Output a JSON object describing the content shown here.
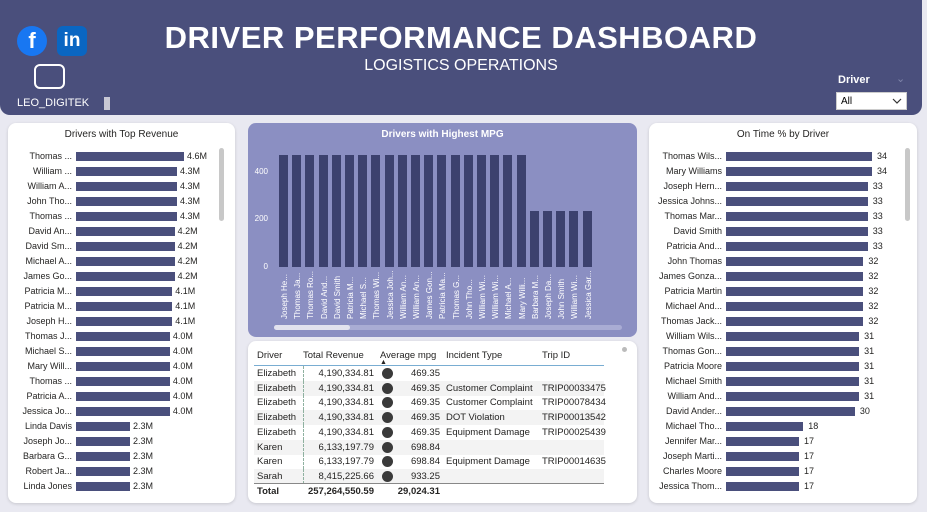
{
  "header": {
    "title": "DRIVER PERFORMANCE DASHBOARD",
    "subtitle": "LOGISTICS OPERATIONS",
    "brand_label": "LEO_DIGITEK",
    "social": {
      "facebook_glyph": "f",
      "linkedin_glyph": "in"
    },
    "colors": {
      "header_bg": "#4a4f7c",
      "bar": "#4a4f7c",
      "panel_mid": "#8b8fc2"
    }
  },
  "slicer": {
    "label": "Driver",
    "value": "All",
    "chevron": "⌄"
  },
  "chart_data": [
    {
      "type": "bar",
      "orientation": "horizontal",
      "title": "Drivers with Top Revenue",
      "categories": [
        "Thomas ...",
        "William ...",
        "William A...",
        "John Tho...",
        "Thomas ...",
        "David An...",
        "David Sm...",
        "Michael A...",
        "James Go...",
        "Patricia M...",
        "Patricia M...",
        "Joseph H...",
        "Thomas J...",
        "Michael S...",
        "Mary Will...",
        "Thomas ...",
        "Patricia A...",
        "Jessica Jo...",
        "Linda Davis",
        "Joseph Jo...",
        "Barbara G...",
        "Robert Ja...",
        "Linda Jones"
      ],
      "values": [
        4.6,
        4.3,
        4.3,
        4.3,
        4.3,
        4.2,
        4.2,
        4.2,
        4.2,
        4.1,
        4.1,
        4.1,
        4.0,
        4.0,
        4.0,
        4.0,
        4.0,
        4.0,
        2.3,
        2.3,
        2.3,
        2.3,
        2.3
      ],
      "labels": [
        "4.6M",
        "4.3M",
        "4.3M",
        "4.3M",
        "4.3M",
        "4.2M",
        "4.2M",
        "4.2M",
        "4.2M",
        "4.1M",
        "4.1M",
        "4.1M",
        "4.0M",
        "4.0M",
        "4.0M",
        "4.0M",
        "4.0M",
        "4.0M",
        "2.3M",
        "2.3M",
        "2.3M",
        "2.3M",
        "2.3M"
      ],
      "xlim": [
        0,
        4.6
      ]
    },
    {
      "type": "bar",
      "title": "Drivers with Highest MPG",
      "categories": [
        "Joseph He...",
        "Thomas Ja...",
        "Thomas Ro...",
        "David And...",
        "David Smith",
        "Patricia M...",
        "Michael S...",
        "Thomas Wi...",
        "Jessica Joh...",
        "William An...",
        "William An...",
        "James Gon...",
        "Patricia Ma...",
        "Thomas G...",
        "John Tho...",
        "William Wi...",
        "William Wi...",
        "Michael A...",
        "Mary Willi...",
        "Barbara M...",
        "Joseph Da...",
        "John Smith",
        "William Wi...",
        "Jessica Gar..."
      ],
      "values": [
        469,
        469,
        469,
        469,
        469,
        469,
        469,
        469,
        469,
        469,
        469,
        469,
        469,
        469,
        469,
        469,
        469,
        469,
        469,
        234,
        234,
        234,
        234,
        234
      ],
      "y_ticks": [
        "400",
        "200",
        "0"
      ],
      "ylim": [
        0,
        520
      ]
    },
    {
      "type": "bar",
      "orientation": "horizontal",
      "title": "On Time % by Driver",
      "categories": [
        "Thomas Wils...",
        "Mary Williams",
        "Joseph Hern...",
        "Jessica Johns...",
        "Thomas Mar...",
        "David Smith",
        "Patricia And...",
        "John Thomas",
        "James Gonza...",
        "Patricia Martin",
        "Michael And...",
        "Thomas Jack...",
        "William Wils...",
        "Thomas Gon...",
        "Patricia Moore",
        "Michael Smith",
        "William And...",
        "David Ander...",
        "Michael Tho...",
        "Jennifer Mar...",
        "Joseph Marti...",
        "Charles Moore",
        "Jessica Thom..."
      ],
      "values": [
        34,
        34,
        33,
        33,
        33,
        33,
        33,
        32,
        32,
        32,
        32,
        32,
        31,
        31,
        31,
        31,
        31,
        30,
        18,
        17,
        17,
        17,
        17
      ],
      "xlim": [
        0,
        34
      ]
    }
  ],
  "table": {
    "columns": [
      "Driver",
      "Total Revenue",
      "Average mpg",
      "Incident Type",
      "Trip ID"
    ],
    "rows": [
      {
        "driver": "Elizabeth",
        "revenue": "4,190,334.81",
        "mpg": "469.35",
        "incident": "",
        "trip": ""
      },
      {
        "driver": "Elizabeth",
        "revenue": "4,190,334.81",
        "mpg": "469.35",
        "incident": "Customer Complaint",
        "trip": "TRIP00033475"
      },
      {
        "driver": "Elizabeth",
        "revenue": "4,190,334.81",
        "mpg": "469.35",
        "incident": "Customer Complaint",
        "trip": "TRIP00078434"
      },
      {
        "driver": "Elizabeth",
        "revenue": "4,190,334.81",
        "mpg": "469.35",
        "incident": "DOT Violation",
        "trip": "TRIP00013542"
      },
      {
        "driver": "Elizabeth",
        "revenue": "4,190,334.81",
        "mpg": "469.35",
        "incident": "Equipment Damage",
        "trip": "TRIP00025439"
      },
      {
        "driver": "Karen",
        "revenue": "6,133,197.79",
        "mpg": "698.84",
        "incident": "",
        "trip": ""
      },
      {
        "driver": "Karen",
        "revenue": "6,133,197.79",
        "mpg": "698.84",
        "incident": "Equipment Damage",
        "trip": "TRIP00014635"
      },
      {
        "driver": "Sarah",
        "revenue": "8,415,225.66",
        "mpg": "933.25",
        "incident": "",
        "trip": ""
      }
    ],
    "total": {
      "label": "Total",
      "revenue": "257,264,550.59",
      "mpg": "29,024.31"
    }
  }
}
